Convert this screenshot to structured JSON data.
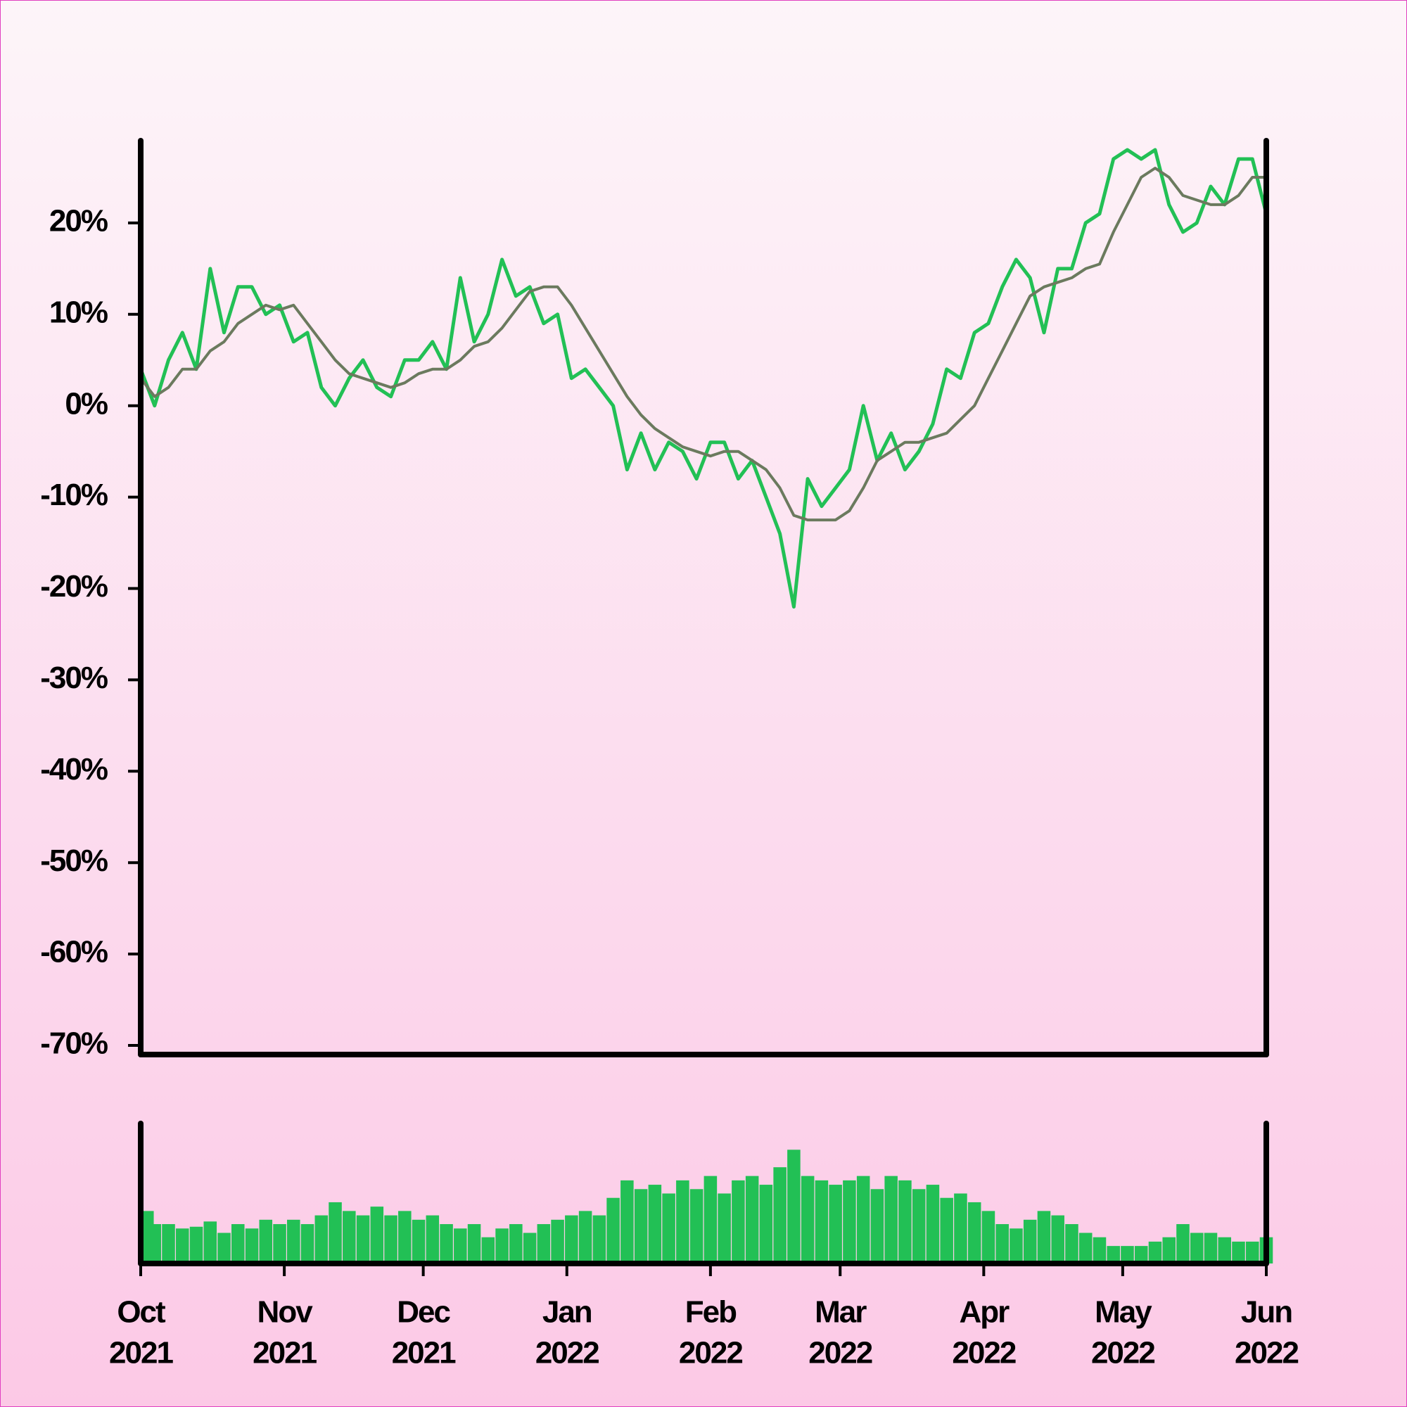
{
  "chart_data": {
    "type": "line",
    "x": [
      "2021-10-01",
      "2021-10-04",
      "2021-10-07",
      "2021-10-10",
      "2021-10-13",
      "2021-10-16",
      "2021-10-19",
      "2021-10-22",
      "2021-10-25",
      "2021-10-28",
      "2021-10-31",
      "2021-11-03",
      "2021-11-06",
      "2021-11-09",
      "2021-11-12",
      "2021-11-15",
      "2021-11-18",
      "2021-11-21",
      "2021-11-24",
      "2021-11-27",
      "2021-11-30",
      "2021-12-03",
      "2021-12-06",
      "2021-12-09",
      "2021-12-12",
      "2021-12-15",
      "2021-12-18",
      "2021-12-21",
      "2021-12-24",
      "2021-12-27",
      "2021-12-30",
      "2022-01-02",
      "2022-01-05",
      "2022-01-08",
      "2022-01-11",
      "2022-01-14",
      "2022-01-17",
      "2022-01-20",
      "2022-01-23",
      "2022-01-26",
      "2022-01-29",
      "2022-02-01",
      "2022-02-04",
      "2022-02-07",
      "2022-02-10",
      "2022-02-13",
      "2022-02-16",
      "2022-02-19",
      "2022-02-22",
      "2022-02-25",
      "2022-02-28",
      "2022-03-03",
      "2022-03-06",
      "2022-03-09",
      "2022-03-12",
      "2022-03-15",
      "2022-03-18",
      "2022-03-21",
      "2022-03-24",
      "2022-03-27",
      "2022-03-30",
      "2022-04-02",
      "2022-04-05",
      "2022-04-08",
      "2022-04-11",
      "2022-04-14",
      "2022-04-17",
      "2022-04-20",
      "2022-04-23",
      "2022-04-26",
      "2022-04-29",
      "2022-05-02",
      "2022-05-05",
      "2022-05-08",
      "2022-05-11",
      "2022-05-14",
      "2022-05-17",
      "2022-05-20",
      "2022-05-23",
      "2022-05-26",
      "2022-05-29",
      "2022-06-01"
    ],
    "series": [
      {
        "color": "#22c055",
        "values": [
          4,
          0,
          5,
          8,
          4,
          15,
          8,
          13,
          13,
          10,
          11,
          7,
          8,
          2,
          0,
          3,
          5,
          2,
          1,
          5,
          5,
          7,
          4,
          14,
          7,
          10,
          16,
          12,
          13,
          9,
          10,
          3,
          4,
          2,
          0,
          -7,
          -3,
          -7,
          -4,
          -5,
          -8,
          -4,
          -4,
          -8,
          -6,
          -10,
          -14,
          -22,
          -8,
          -11,
          -9,
          -7,
          0,
          -6,
          -3,
          -7,
          -5,
          -2,
          4,
          3,
          8,
          9,
          13,
          16,
          14,
          8,
          15,
          15,
          20,
          21,
          27,
          28,
          27,
          28,
          22,
          19,
          20,
          24,
          22,
          27,
          27,
          21
        ]
      },
      {
        "color": "#6b7a5e",
        "values": [
          3,
          1,
          2,
          4,
          4,
          6,
          7,
          9,
          10,
          11,
          10.5,
          11,
          9,
          7,
          5,
          3.5,
          3,
          2.5,
          2,
          2.5,
          3.5,
          4,
          4,
          5,
          6.5,
          7,
          8.5,
          10.5,
          12.5,
          13,
          13,
          11,
          8.5,
          6,
          3.5,
          1,
          -1,
          -2.5,
          -3.5,
          -4.5,
          -5,
          -5.5,
          -5,
          -5,
          -6,
          -7,
          -9,
          -12,
          -12.5,
          -12.5,
          -12.5,
          -11.5,
          -9,
          -6,
          -5,
          -4,
          -4,
          -3.5,
          -3,
          -1.5,
          0,
          3,
          6,
          9,
          12,
          13,
          13.5,
          14,
          15,
          15.5,
          19,
          22,
          25,
          26,
          25,
          23,
          22.5,
          22,
          22,
          23,
          25,
          25
        ]
      }
    ],
    "ylim": [
      -71,
      29
    ],
    "yticks": [
      {
        "value": -70,
        "label": "-70%"
      },
      {
        "value": -60,
        "label": "-60%"
      },
      {
        "value": -50,
        "label": "-50%"
      },
      {
        "value": -40,
        "label": "-40%"
      },
      {
        "value": -30,
        "label": "-30%"
      },
      {
        "value": -20,
        "label": "-20%"
      },
      {
        "value": -10,
        "label": "-10%"
      },
      {
        "value": 0,
        "label": "0%"
      },
      {
        "value": 10,
        "label": "10%"
      },
      {
        "value": 20,
        "label": "20%"
      }
    ],
    "xlim": [
      "2021-10-01",
      "2022-06-01"
    ],
    "xticks": [
      {
        "value": "2021-10-01",
        "label": [
          "Oct",
          "2021"
        ]
      },
      {
        "value": "2021-11-01",
        "label": [
          "Nov",
          "2021"
        ]
      },
      {
        "value": "2021-12-01",
        "label": [
          "Dec",
          "2021"
        ]
      },
      {
        "value": "2022-01-01",
        "label": [
          "Jan",
          "2022"
        ]
      },
      {
        "value": "2022-02-01",
        "label": [
          "Feb",
          "2022"
        ]
      },
      {
        "value": "2022-03-01",
        "label": [
          "Mar",
          "2022"
        ]
      },
      {
        "value": "2022-04-01",
        "label": [
          "Apr",
          "2022"
        ]
      },
      {
        "value": "2022-05-01",
        "label": [
          "May",
          "2022"
        ]
      },
      {
        "value": "2022-06-01",
        "label": [
          "Jun",
          "2022"
        ]
      }
    ],
    "volume": {
      "type": "bar",
      "color": "#22c055",
      "ylim": [
        0,
        160
      ],
      "values": [
        60,
        45,
        45,
        40,
        42,
        48,
        35,
        45,
        40,
        50,
        45,
        50,
        45,
        55,
        70,
        60,
        55,
        65,
        55,
        60,
        50,
        55,
        45,
        40,
        45,
        30,
        40,
        45,
        35,
        45,
        50,
        55,
        60,
        55,
        75,
        95,
        85,
        90,
        80,
        95,
        85,
        100,
        80,
        95,
        100,
        90,
        110,
        130,
        100,
        95,
        90,
        95,
        100,
        85,
        100,
        95,
        85,
        90,
        75,
        80,
        70,
        60,
        45,
        40,
        50,
        60,
        55,
        45,
        35,
        30,
        20,
        20,
        20,
        25,
        30,
        45,
        35,
        35,
        30,
        25,
        25,
        30
      ]
    }
  }
}
